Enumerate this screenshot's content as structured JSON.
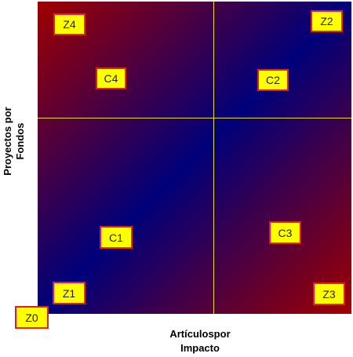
{
  "axis": {
    "x": [
      "Artículospor",
      "Impacto"
    ],
    "y": [
      "Proyectos por",
      "Fondos"
    ]
  },
  "nodes": [
    {
      "label": "Z4"
    },
    {
      "label": "C4"
    },
    {
      "label": "C2"
    },
    {
      "label": "Z2"
    },
    {
      "label": "C1"
    },
    {
      "label": "C3"
    },
    {
      "label": "Z1"
    },
    {
      "label": "Z3"
    },
    {
      "label": "Z0"
    }
  ]
}
